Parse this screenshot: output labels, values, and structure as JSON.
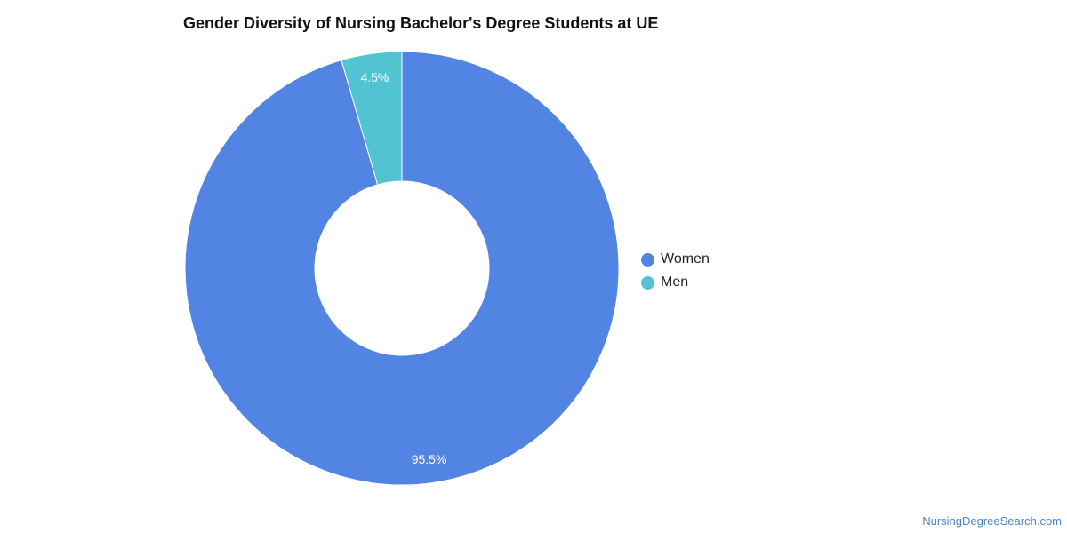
{
  "chart_data": {
    "type": "pie",
    "title": "Gender Diversity of Nursing Bachelor's Degree Students at UE",
    "donut": true,
    "legend_position": "right",
    "series": [
      {
        "name": "Women",
        "value": 95.5,
        "label": "95.5%",
        "color": "#5284e3"
      },
      {
        "name": "Men",
        "value": 4.5,
        "label": "4.5%",
        "color": "#52c3d1"
      }
    ]
  },
  "source": "NursingDegreeSearch.com"
}
